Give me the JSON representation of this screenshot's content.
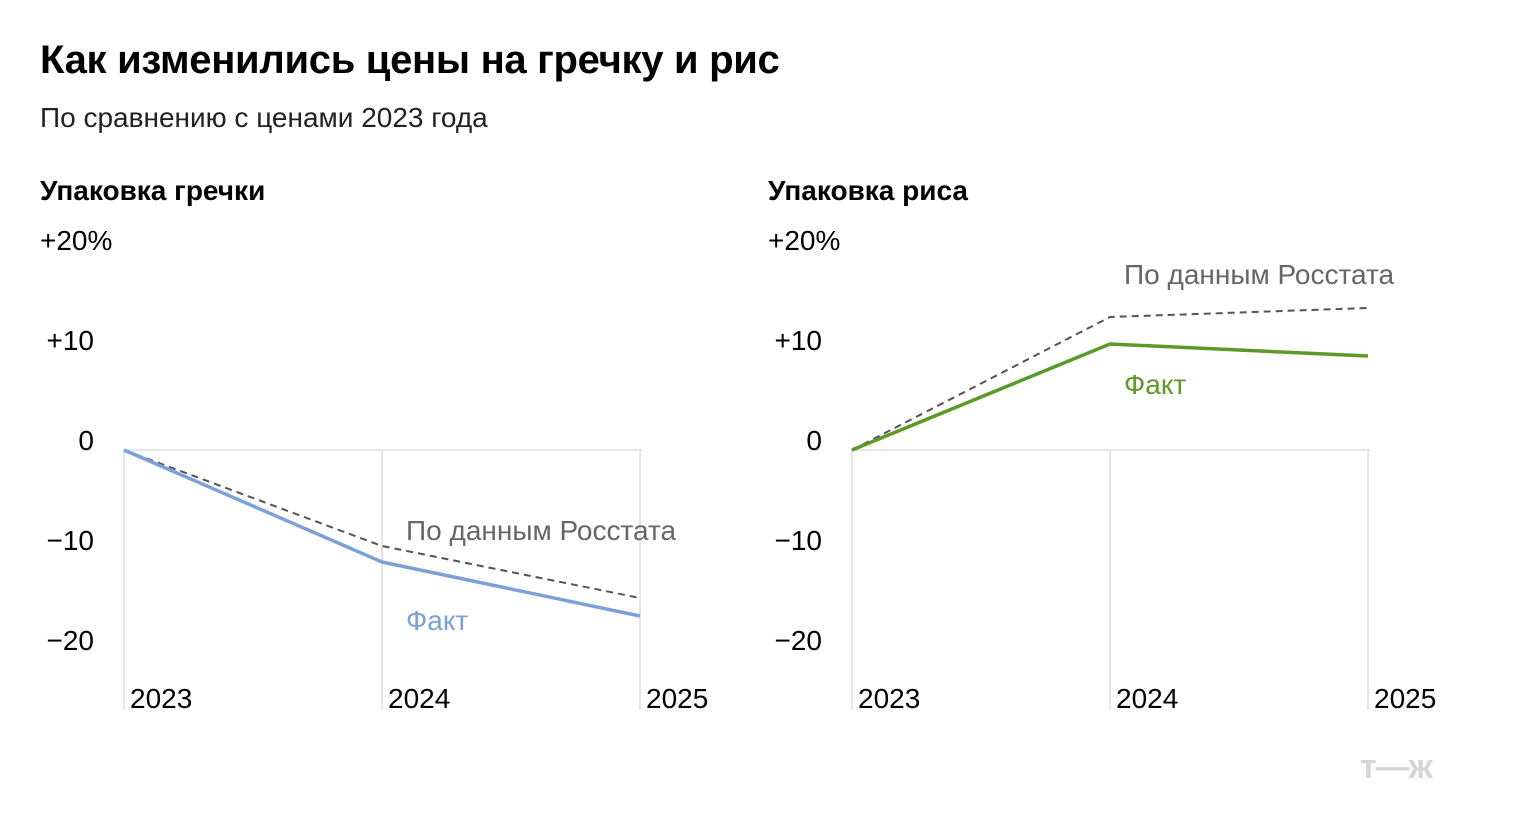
{
  "title": "Как изменились цены на гречку и рис",
  "subtitle": "По сравнению с ценами 2023 года",
  "brand": "т—ж",
  "colors": {
    "buckwheat": "#7da0d9",
    "rice": "#5b9a2a",
    "rosstat": "#555555",
    "grid": "#dddddd",
    "label_gray": "#666666"
  },
  "chart_data": [
    {
      "type": "line",
      "title": "Упаковка гречки",
      "x": [
        "2023",
        "2024",
        "2025"
      ],
      "ylim": [
        -26,
        20
      ],
      "y_ticks": [
        20,
        10,
        0,
        -10,
        -20
      ],
      "y_tick_labels": [
        "+20%",
        "+10",
        "0",
        "−10",
        "−20"
      ],
      "series": [
        {
          "name": "Факт",
          "values": [
            0,
            -11.2,
            -16.6
          ]
        },
        {
          "name": "По данным Росстата",
          "values": [
            0,
            -9.6,
            -14.8
          ]
        }
      ]
    },
    {
      "type": "line",
      "title": "Упаковка риса",
      "x": [
        "2023",
        "2024",
        "2025"
      ],
      "ylim": [
        -26,
        20
      ],
      "y_ticks": [
        20,
        10,
        0,
        -10,
        -20
      ],
      "y_tick_labels": [
        "+20%",
        "+10",
        "0",
        "−10",
        "−20"
      ],
      "series": [
        {
          "name": "Факт",
          "values": [
            0,
            10.6,
            9.4
          ]
        },
        {
          "name": "По данным Росстата",
          "values": [
            0,
            13.3,
            14.2
          ]
        }
      ]
    }
  ]
}
